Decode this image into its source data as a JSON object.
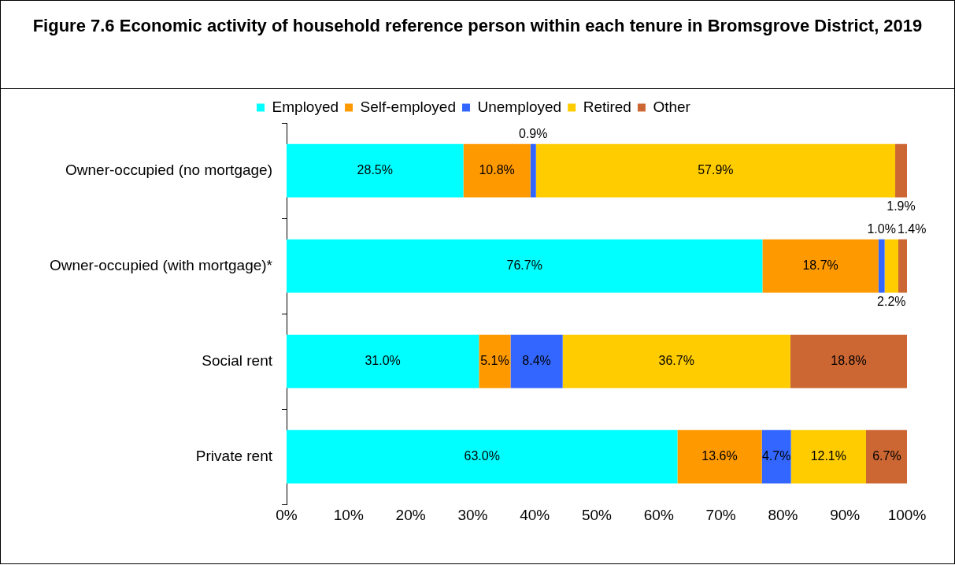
{
  "chart_data": {
    "type": "bar",
    "orientation": "horizontal",
    "stacked": true,
    "title": "Figure 7.6 Economic activity of household reference person within each tenure in Bromsgrove District, 2019",
    "categories": [
      "Owner-occupied (no mortgage)",
      "Owner-occupied (with mortgage)*",
      "Social rent",
      "Private rent"
    ],
    "series": [
      {
        "name": "Employed",
        "color": "#00ffff",
        "values": [
          28.5,
          76.7,
          31.0,
          63.0
        ],
        "value_labels": [
          "28.5%",
          "76.7%",
          "31.0%",
          "63.0%"
        ]
      },
      {
        "name": "Self-employed",
        "color": "#ff9900",
        "values": [
          10.8,
          18.7,
          5.1,
          13.6
        ],
        "value_labels": [
          "10.8%",
          "18.7%",
          "5.1%",
          "13.6%"
        ]
      },
      {
        "name": "Unemployed",
        "color": "#3366ff",
        "values": [
          0.9,
          1.0,
          8.4,
          4.7
        ],
        "value_labels": [
          "0.9%",
          "1.0%",
          "8.4%",
          "4.7%"
        ]
      },
      {
        "name": "Retired",
        "color": "#ffcc00",
        "values": [
          57.9,
          2.2,
          36.7,
          12.1
        ],
        "value_labels": [
          "57.9%",
          "2.2%",
          "36.7%",
          "12.1%"
        ]
      },
      {
        "name": "Other",
        "color": "#cc6633",
        "values": [
          1.9,
          1.4,
          18.8,
          6.7
        ],
        "value_labels": [
          "1.9%",
          "1.4%",
          "18.8%",
          "6.7%"
        ]
      }
    ],
    "xlim": [
      0,
      100
    ],
    "xticks": [
      {
        "value": 0,
        "label": "0%"
      },
      {
        "value": 10,
        "label": "10%"
      },
      {
        "value": 20,
        "label": "20%"
      },
      {
        "value": 30,
        "label": "30%"
      },
      {
        "value": 40,
        "label": "40%"
      },
      {
        "value": 50,
        "label": "50%"
      },
      {
        "value": 60,
        "label": "60%"
      },
      {
        "value": 70,
        "label": "70%"
      },
      {
        "value": 80,
        "label": "80%"
      },
      {
        "value": 90,
        "label": "90%"
      },
      {
        "value": 100,
        "label": "100%"
      }
    ],
    "grid": false,
    "legend": "top"
  }
}
